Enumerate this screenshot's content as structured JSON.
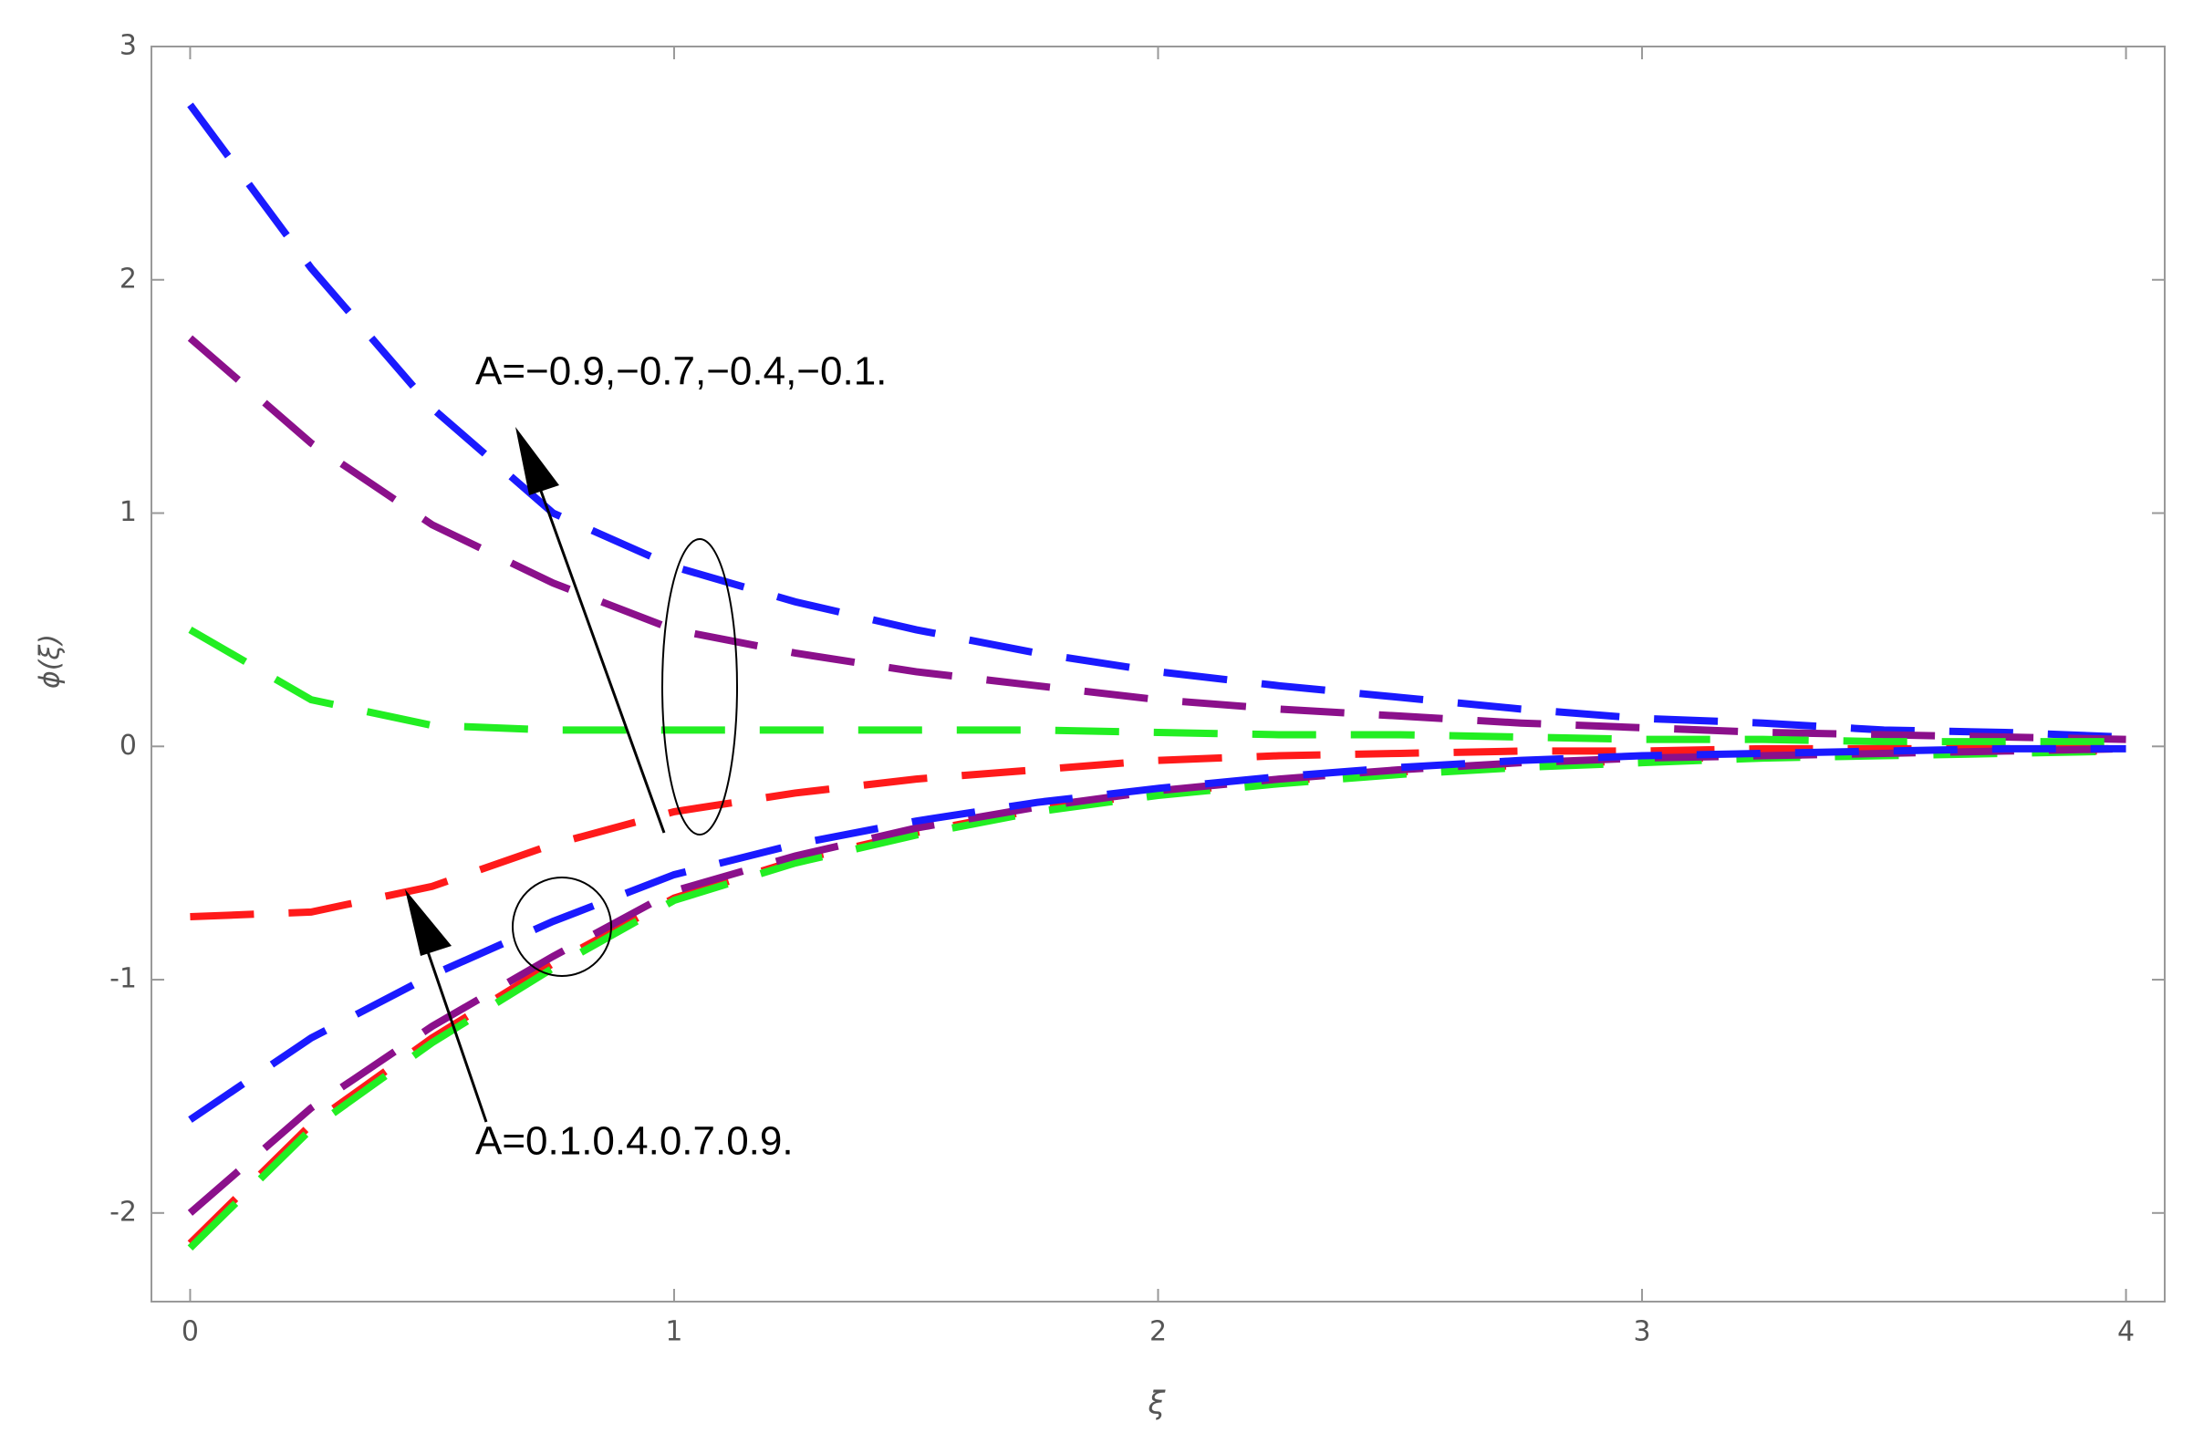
{
  "chart_data": {
    "type": "line",
    "x_label": "ξ",
    "y_label": "ϕ(ξ)",
    "annotations": [
      "A=−0.9,−0.7,−0.4,−0.1.",
      "A=0.1.0.4.0.7.0.9."
    ],
    "x": [
      0,
      0.25,
      0.5,
      0.75,
      1,
      1.25,
      1.5,
      1.75,
      2,
      2.25,
      2.5,
      2.75,
      3,
      3.25,
      3.5,
      3.75,
      4
    ],
    "series": [
      {
        "color": "#1a1aff",
        "values": [
          2.75,
          2.05,
          1.45,
          1.0,
          0.77,
          0.62,
          0.5,
          0.4,
          0.32,
          0.26,
          0.21,
          0.16,
          0.12,
          0.1,
          0.07,
          0.06,
          0.04
        ]
      },
      {
        "color": "#8b108b",
        "values": [
          1.75,
          1.3,
          0.95,
          0.7,
          0.5,
          0.4,
          0.32,
          0.26,
          0.2,
          0.16,
          0.13,
          0.1,
          0.08,
          0.06,
          0.05,
          0.04,
          0.03
        ]
      },
      {
        "color": "#22ee22",
        "values": [
          0.5,
          0.2,
          0.09,
          0.07,
          0.07,
          0.07,
          0.07,
          0.07,
          0.06,
          0.05,
          0.05,
          0.04,
          0.03,
          0.03,
          0.02,
          0.02,
          0.02
        ]
      },
      {
        "color": "#ff1a1a",
        "values": [
          -0.73,
          -0.71,
          -0.6,
          -0.42,
          -0.28,
          -0.2,
          -0.14,
          -0.1,
          -0.06,
          -0.04,
          -0.03,
          -0.02,
          -0.02,
          -0.01,
          -0.01,
          -0.01,
          -0.01
        ]
      },
      {
        "color": "#ff1a1a",
        "values": [
          -2.13,
          -1.62,
          -1.25,
          -0.93,
          -0.65,
          -0.49,
          -0.37,
          -0.27,
          -0.2,
          -0.15,
          -0.11,
          -0.08,
          -0.06,
          -0.04,
          -0.03,
          -0.02,
          -0.02
        ]
      },
      {
        "color": "#22ee22",
        "values": [
          -2.15,
          -1.64,
          -1.27,
          -0.95,
          -0.66,
          -0.5,
          -0.38,
          -0.28,
          -0.21,
          -0.16,
          -0.12,
          -0.09,
          -0.07,
          -0.05,
          -0.04,
          -0.03,
          -0.02
        ]
      },
      {
        "color": "#8b108b",
        "values": [
          -2.0,
          -1.55,
          -1.2,
          -0.9,
          -0.62,
          -0.47,
          -0.35,
          -0.26,
          -0.19,
          -0.14,
          -0.1,
          -0.07,
          -0.05,
          -0.04,
          -0.03,
          -0.02,
          -0.01
        ]
      },
      {
        "color": "#1a1aff",
        "values": [
          -1.6,
          -1.25,
          -0.98,
          -0.75,
          -0.55,
          -0.42,
          -0.32,
          -0.24,
          -0.18,
          -0.13,
          -0.09,
          -0.06,
          -0.04,
          -0.03,
          -0.02,
          -0.01,
          -0.01
        ]
      }
    ],
    "xlim": [
      -0.08,
      4.08
    ],
    "ylim": [
      -2.38,
      3
    ],
    "xticks": [
      0,
      1,
      2,
      3,
      4
    ],
    "yticks": [
      -2,
      -1,
      0,
      1,
      2,
      3
    ]
  }
}
